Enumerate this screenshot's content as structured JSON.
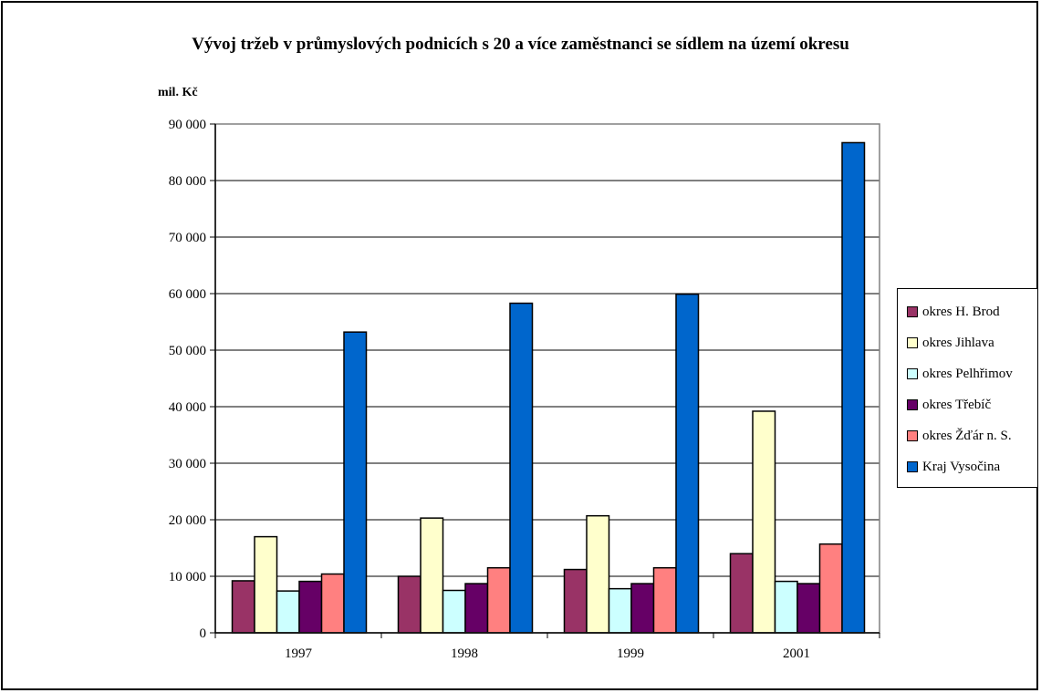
{
  "chart_data": {
    "type": "bar",
    "title": "Vývoj tržeb v průmyslových podnicích s 20 a více zaměstnanci se sídlem na území okresu",
    "ylabel": "mil. Kč",
    "xlabel": "",
    "categories": [
      "1997",
      "1998",
      "1999",
      "2001"
    ],
    "ylim": [
      0,
      90000
    ],
    "yticks": [
      0,
      10000,
      20000,
      30000,
      40000,
      50000,
      60000,
      70000,
      80000,
      90000
    ],
    "ytick_labels": [
      "0",
      "10 000",
      "20 000",
      "30 000",
      "40 000",
      "50 000",
      "60 000",
      "70 000",
      "80 000",
      "90 000"
    ],
    "grid": true,
    "legend_position": "right",
    "series": [
      {
        "name": "okres H. Brod",
        "color": "#993366",
        "values": [
          9200,
          10000,
          11200,
          14000
        ]
      },
      {
        "name": "okres Jihlava",
        "color": "#FFFFCC",
        "values": [
          17000,
          20300,
          20700,
          39200
        ]
      },
      {
        "name": "okres Pelhřimov",
        "color": "#CCFFFF",
        "values": [
          7400,
          7500,
          7800,
          9100
        ]
      },
      {
        "name": "okres Třebíč",
        "color": "#660066",
        "values": [
          9100,
          8700,
          8700,
          8700
        ]
      },
      {
        "name": "okres Žďár n. S.",
        "color": "#FF8080",
        "values": [
          10400,
          11500,
          11500,
          15700
        ]
      },
      {
        "name": "Kraj Vysočina",
        "color": "#0066CC",
        "values": [
          53200,
          58300,
          59900,
          86700
        ]
      }
    ]
  }
}
